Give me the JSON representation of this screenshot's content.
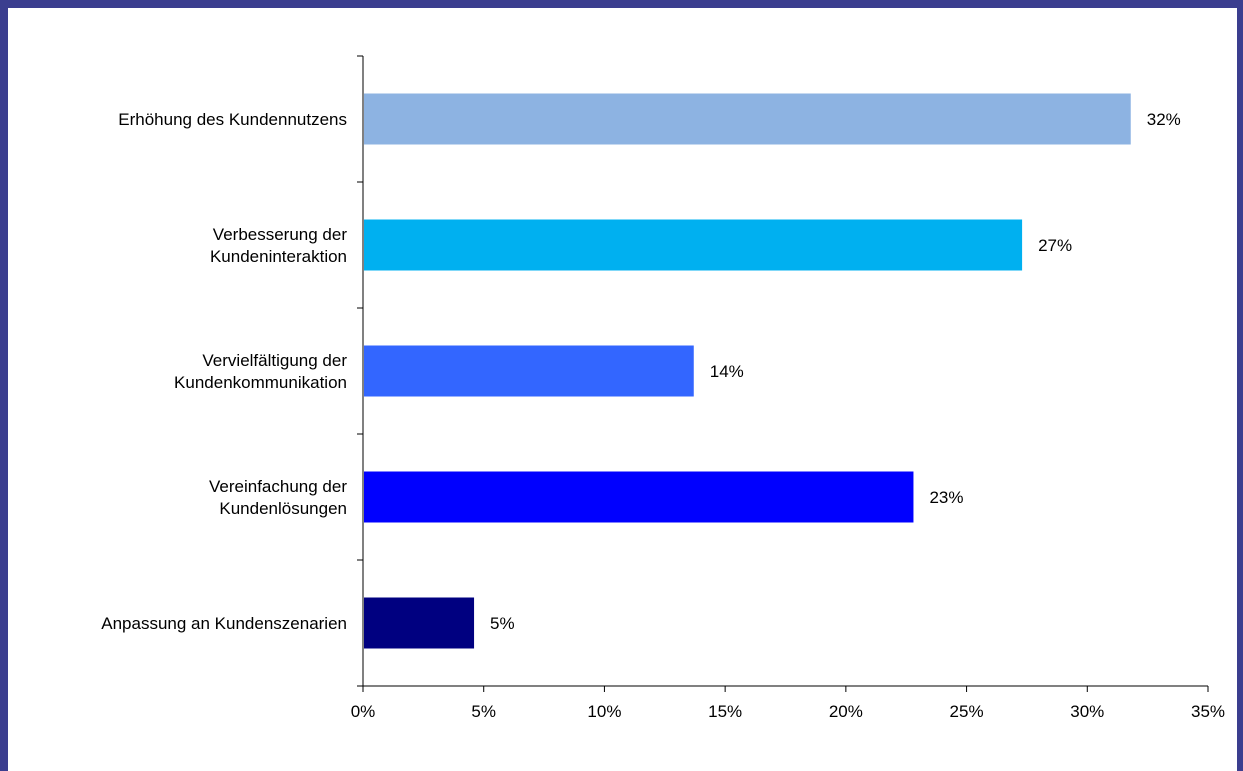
{
  "chart_data": {
    "type": "bar",
    "orientation": "horizontal",
    "categories": [
      [
        "Erhöhung des Kundennutzens"
      ],
      [
        "Verbesserung der",
        "Kundeninteraktion"
      ],
      [
        "Vervielfältigung der",
        "Kundenkommunikation"
      ],
      [
        "Vereinfachung der",
        "Kundenlösungen"
      ],
      [
        "Anpassung an Kundenszenarien"
      ]
    ],
    "values": [
      31.8,
      27.3,
      13.7,
      22.8,
      4.6
    ],
    "data_labels": [
      "32%",
      "27%",
      "14%",
      "23%",
      "5%"
    ],
    "colors": [
      "#8db3e2",
      "#00b0f0",
      "#3366ff",
      "#0000ff",
      "#000080"
    ],
    "xlim": [
      0,
      35
    ],
    "x_ticks": [
      0,
      5,
      10,
      15,
      20,
      25,
      30,
      35
    ],
    "x_tick_labels": [
      "0%",
      "5%",
      "10%",
      "15%",
      "20%",
      "25%",
      "30%",
      "35%"
    ],
    "grid": false,
    "legend": "none"
  }
}
